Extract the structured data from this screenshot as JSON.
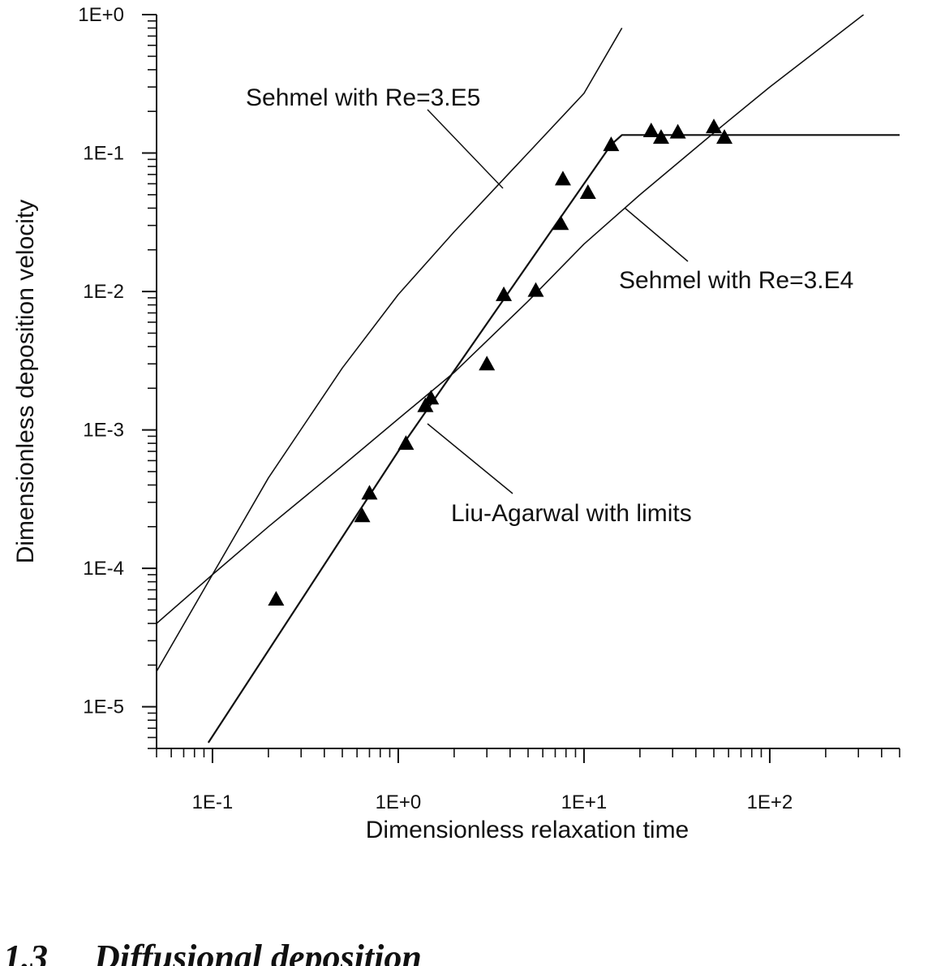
{
  "chart_data": {
    "type": "scatter",
    "xlabel": "Dimensionless relaxation time",
    "ylabel": "Dimensionless deposition velocity",
    "x_scale": "log",
    "y_scale": "log",
    "xlim": [
      0.05,
      500
    ],
    "ylim": [
      5e-06,
      1
    ],
    "x_ticks": [
      {
        "value": 0.1,
        "label": "1E-1"
      },
      {
        "value": 1,
        "label": "1E+0"
      },
      {
        "value": 10,
        "label": "1E+1"
      },
      {
        "value": 100,
        "label": "1E+2"
      }
    ],
    "y_ticks": [
      {
        "value": 1,
        "label": "1E+0"
      },
      {
        "value": 0.1,
        "label": "1E-1"
      },
      {
        "value": 0.01,
        "label": "1E-2"
      },
      {
        "value": 0.001,
        "label": "1E-3"
      },
      {
        "value": 0.0001,
        "label": "1E-4"
      },
      {
        "value": 1e-05,
        "label": "1E-5"
      }
    ],
    "grid": false,
    "curves": [
      {
        "label": "Sehmel with Re=3.E5",
        "x": [
          0.05,
          0.1,
          0.2,
          0.5,
          1,
          2,
          5,
          10,
          16
        ],
        "y": [
          1.8e-05,
          9e-05,
          0.00045,
          0.0028,
          0.0095,
          0.027,
          0.1,
          0.27,
          0.8
        ]
      },
      {
        "label": "Sehmel with Re=3.E4",
        "x": [
          0.05,
          0.1,
          0.2,
          0.5,
          1,
          2,
          5,
          10,
          20,
          50,
          100,
          320
        ],
        "y": [
          4e-05,
          9e-05,
          0.0002,
          0.00055,
          0.0012,
          0.0026,
          0.0085,
          0.022,
          0.05,
          0.14,
          0.3,
          1
        ]
      },
      {
        "label": "Liu-Agarwal with limits",
        "x": [
          0.095,
          1,
          14,
          16,
          500
        ],
        "y": [
          5.5e-06,
          0.0007,
          0.115,
          0.135,
          0.135
        ]
      }
    ],
    "points": {
      "marker": "triangle",
      "x": [
        0.22,
        0.64,
        0.7,
        1.1,
        1.4,
        1.5,
        3.0,
        3.7,
        5.5,
        7.5,
        7.7,
        10.5,
        14,
        23,
        26,
        32,
        50,
        57
      ],
      "y": [
        6e-05,
        0.00024,
        0.00035,
        0.0008,
        0.0015,
        0.0017,
        0.003,
        0.0095,
        0.0102,
        0.031,
        0.065,
        0.052,
        0.115,
        0.145,
        0.13,
        0.142,
        0.155,
        0.13
      ]
    },
    "annotations": [
      {
        "text": "Sehmel with Re=3.E5",
        "curve": 0
      },
      {
        "text": "Sehmel with Re=3.E4",
        "curve": 1
      },
      {
        "text": "Liu-Agarwal with limits",
        "curve": 2
      }
    ]
  },
  "section_heading": {
    "number": "1.3",
    "title": "Diffusional deposition"
  }
}
